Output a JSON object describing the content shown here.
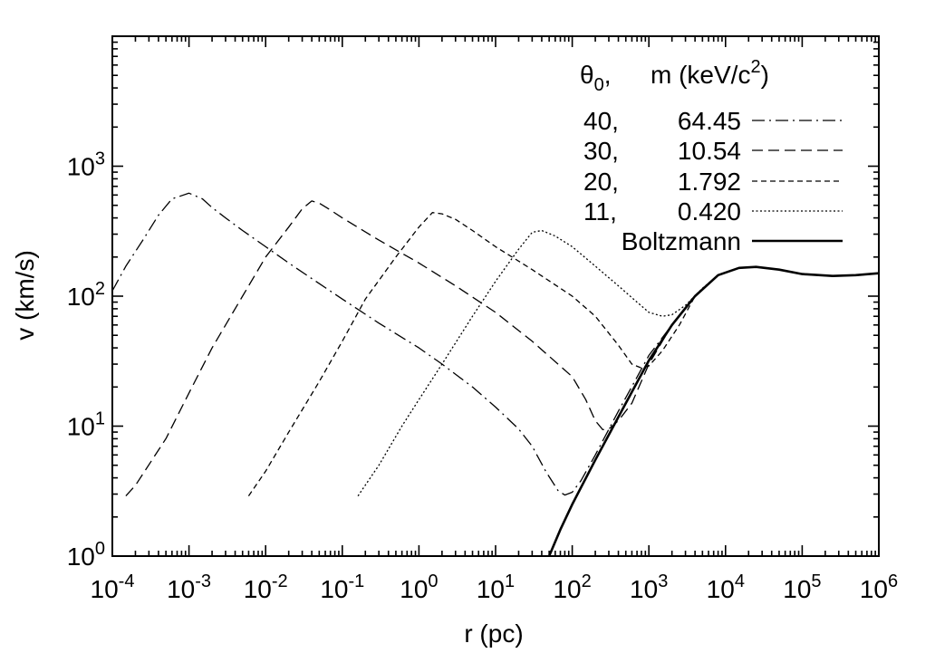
{
  "chart_data": {
    "type": "line",
    "xlabel": "r (pc)",
    "ylabel": "v (km/s)",
    "x_scale": "log",
    "y_scale": "log",
    "xlim": [
      0.0001,
      1000000
    ],
    "ylim": [
      1,
      10000
    ],
    "x_ticks": [
      {
        "base": "10",
        "exp": "-4",
        "value": 0.0001
      },
      {
        "base": "10",
        "exp": "-3",
        "value": 0.001
      },
      {
        "base": "10",
        "exp": "-2",
        "value": 0.01
      },
      {
        "base": "10",
        "exp": "-1",
        "value": 0.1
      },
      {
        "base": "10",
        "exp": "0",
        "value": 1
      },
      {
        "base": "10",
        "exp": "1",
        "value": 10
      },
      {
        "base": "10",
        "exp": "2",
        "value": 100
      },
      {
        "base": "10",
        "exp": "3",
        "value": 1000
      },
      {
        "base": "10",
        "exp": "4",
        "value": 10000
      },
      {
        "base": "10",
        "exp": "5",
        "value": 100000
      },
      {
        "base": "10",
        "exp": "6",
        "value": 1000000
      }
    ],
    "y_ticks": [
      {
        "base": "10",
        "exp": "0",
        "value": 1
      },
      {
        "base": "10",
        "exp": "1",
        "value": 10
      },
      {
        "base": "10",
        "exp": "2",
        "value": 100
      },
      {
        "base": "10",
        "exp": "3",
        "value": 1000
      }
    ],
    "legend": {
      "placement": "top-right",
      "header": {
        "theta": "θ",
        "theta_sub": "0",
        "theta_suffix": ",",
        "m_label": "m (keV/c",
        "m_sup": "2",
        "m_close": ")"
      },
      "entries": [
        {
          "theta0": "40,",
          "m": "64.45",
          "series": 0
        },
        {
          "theta0": "30,",
          "m": "10.54",
          "series": 1
        },
        {
          "theta0": "20,",
          "m": "1.792",
          "series": 2
        },
        {
          "theta0": "11,",
          "m": "0.420",
          "series": 3
        },
        {
          "label": "Boltzmann",
          "series": 4
        }
      ]
    },
    "series": [
      {
        "style": "dash-dot",
        "points": [
          [
            0.0001,
            110
          ],
          [
            0.00015,
            170
          ],
          [
            0.00025,
            270
          ],
          [
            0.0004,
            420
          ],
          [
            0.0006,
            560
          ],
          [
            0.001,
            620
          ],
          [
            0.0015,
            560
          ],
          [
            0.002,
            480
          ],
          [
            0.003,
            400
          ],
          [
            0.005,
            320
          ],
          [
            0.01,
            240
          ],
          [
            0.02,
            180
          ],
          [
            0.05,
            125
          ],
          [
            0.1,
            95
          ],
          [
            0.3,
            62
          ],
          [
            1,
            40
          ],
          [
            2,
            30
          ],
          [
            5,
            20
          ],
          [
            10,
            14
          ],
          [
            20,
            9.5
          ],
          [
            30,
            7
          ],
          [
            45,
            4.5
          ],
          [
            65,
            3.2
          ],
          [
            80,
            2.95
          ],
          [
            100,
            3.1
          ],
          [
            130,
            3.8
          ],
          [
            200,
            6
          ],
          [
            400,
            13
          ],
          [
            1000,
            35
          ],
          [
            2000,
            60
          ],
          [
            4000,
            100
          ],
          [
            8000,
            145
          ],
          [
            15000,
            165
          ],
          [
            25000,
            168
          ],
          [
            50000,
            160
          ],
          [
            100000,
            148
          ],
          [
            250000,
            143
          ],
          [
            500000,
            145
          ],
          [
            1000000,
            150
          ]
        ]
      },
      {
        "style": "long-dash",
        "points": [
          [
            0.00015,
            2.9
          ],
          [
            0.0002,
            3.5
          ],
          [
            0.0005,
            8
          ],
          [
            0.001,
            18
          ],
          [
            0.002,
            40
          ],
          [
            0.005,
            100
          ],
          [
            0.01,
            200
          ],
          [
            0.02,
            340
          ],
          [
            0.03,
            470
          ],
          [
            0.04,
            540
          ],
          [
            0.05,
            520
          ],
          [
            0.07,
            460
          ],
          [
            0.1,
            400
          ],
          [
            0.3,
            270
          ],
          [
            1,
            180
          ],
          [
            3,
            120
          ],
          [
            10,
            75
          ],
          [
            30,
            45
          ],
          [
            100,
            24
          ],
          [
            150,
            16
          ],
          [
            200,
            11
          ],
          [
            250,
            9.4
          ],
          [
            300,
            9.5
          ],
          [
            400,
            11
          ],
          [
            600,
            15
          ],
          [
            1000,
            30
          ],
          [
            2000,
            60
          ],
          [
            4000,
            100
          ],
          [
            8000,
            145
          ],
          [
            15000,
            165
          ],
          [
            25000,
            168
          ]
        ]
      },
      {
        "style": "short-dash",
        "points": [
          [
            0.006,
            2.9
          ],
          [
            0.01,
            4.5
          ],
          [
            0.02,
            9
          ],
          [
            0.05,
            22
          ],
          [
            0.1,
            45
          ],
          [
            0.2,
            95
          ],
          [
            0.5,
            200
          ],
          [
            1,
            340
          ],
          [
            1.5,
            440
          ],
          [
            2,
            430
          ],
          [
            3,
            390
          ],
          [
            5,
            320
          ],
          [
            10,
            240
          ],
          [
            30,
            160
          ],
          [
            100,
            100
          ],
          [
            200,
            70
          ],
          [
            400,
            42
          ],
          [
            600,
            30
          ],
          [
            800,
            28
          ],
          [
            1000,
            29
          ],
          [
            1500,
            38
          ],
          [
            2500,
            60
          ],
          [
            4000,
            100
          ],
          [
            8000,
            145
          ],
          [
            15000,
            165
          ],
          [
            25000,
            168
          ]
        ]
      },
      {
        "style": "dotted",
        "points": [
          [
            0.16,
            2.9
          ],
          [
            0.3,
            5
          ],
          [
            0.6,
            10
          ],
          [
            1,
            16
          ],
          [
            2,
            30
          ],
          [
            5,
            70
          ],
          [
            10,
            130
          ],
          [
            20,
            230
          ],
          [
            30,
            310
          ],
          [
            40,
            320
          ],
          [
            60,
            290
          ],
          [
            100,
            240
          ],
          [
            200,
            170
          ],
          [
            400,
            120
          ],
          [
            700,
            90
          ],
          [
            1000,
            75
          ],
          [
            1500,
            70
          ],
          [
            2000,
            72
          ],
          [
            3000,
            85
          ],
          [
            5000,
            115
          ],
          [
            8000,
            145
          ],
          [
            15000,
            165
          ],
          [
            25000,
            168
          ]
        ]
      },
      {
        "style": "solid",
        "points": [
          [
            50,
            1
          ],
          [
            70,
            1.6
          ],
          [
            100,
            2.5
          ],
          [
            200,
            5.5
          ],
          [
            500,
            15
          ],
          [
            1000,
            32
          ],
          [
            2000,
            60
          ],
          [
            4000,
            100
          ],
          [
            8000,
            145
          ],
          [
            15000,
            165
          ],
          [
            25000,
            168
          ],
          [
            50000,
            160
          ],
          [
            100000,
            148
          ],
          [
            250000,
            143
          ],
          [
            500000,
            145
          ],
          [
            1000000,
            150
          ]
        ]
      }
    ]
  }
}
